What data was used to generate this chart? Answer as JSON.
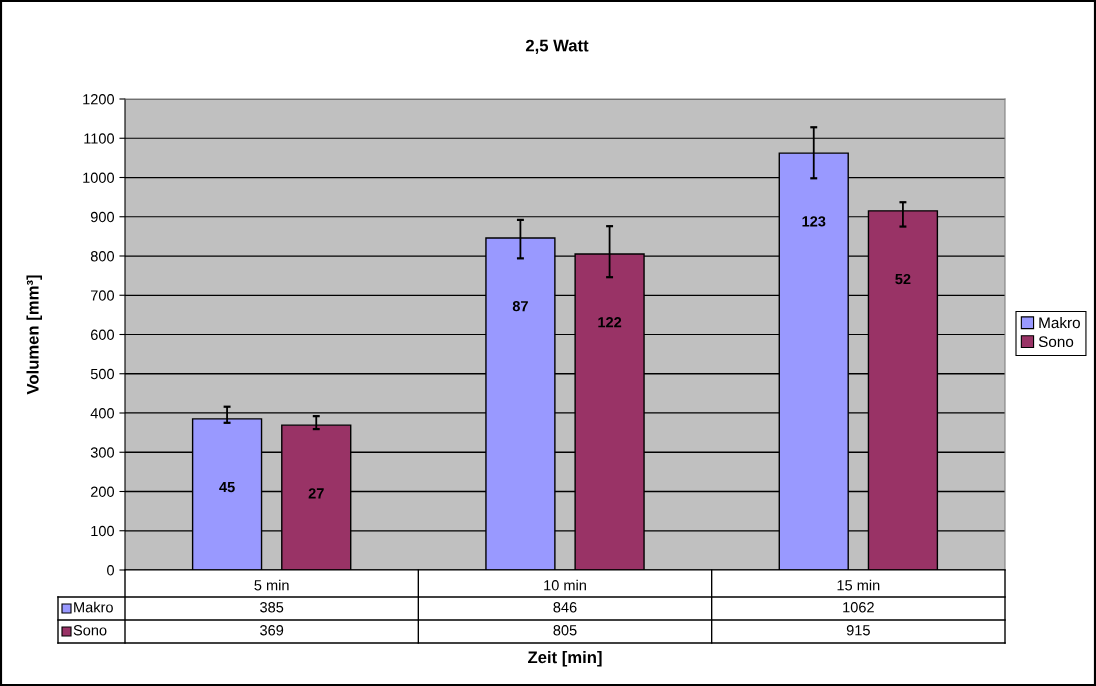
{
  "chart_data": {
    "type": "bar",
    "title": "2,5 Watt",
    "xlabel": "Zeit [min]",
    "ylabel": "Volumen [mm³]",
    "categories": [
      "5 min",
      "10 min",
      "15 min"
    ],
    "series": [
      {
        "name": "Makro",
        "color": "#9999ff",
        "values": [
          385,
          846,
          1062
        ],
        "errors": [
          [
            375,
            416
          ],
          [
            794,
            892
          ],
          [
            998,
            1128
          ]
        ]
      },
      {
        "name": "Sono",
        "color": "#993366",
        "values": [
          369,
          805,
          915
        ],
        "errors": [
          [
            359,
            392
          ],
          [
            746,
            876
          ],
          [
            875,
            937
          ]
        ]
      }
    ],
    "annotations": [
      "45",
      "27",
      "87",
      "122",
      "123",
      "52"
    ],
    "ylim": [
      0,
      1200
    ],
    "yticks": [
      0,
      100,
      200,
      300,
      400,
      500,
      600,
      700,
      800,
      900,
      1000,
      1100,
      1200
    ],
    "grid": "y",
    "legend": "right",
    "data_labels": true
  }
}
